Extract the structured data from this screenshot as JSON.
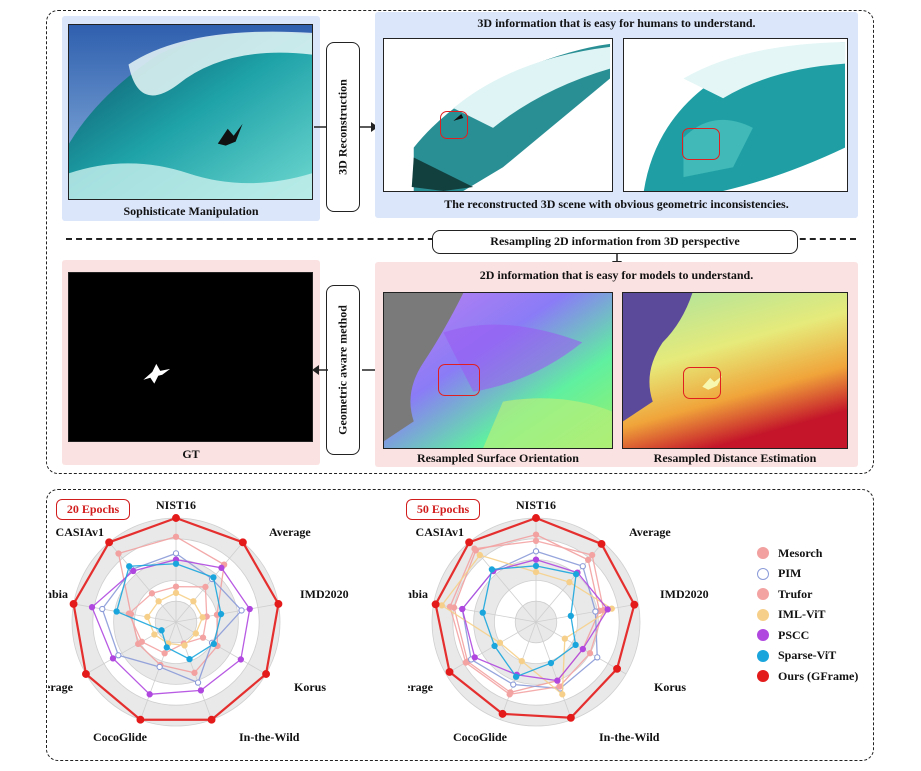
{
  "top": {
    "source_caption": "Sophisticate Manipulation",
    "recon_button": "3D Reconstruction",
    "human_title": "3D information that is easy for humans to understand.",
    "recon_caption": "The reconstructed 3D scene with obvious geometric inconsistencies.",
    "resample_button": "Resampling 2D information from 3D perspective",
    "model_title": "2D information that is easy for models to understand.",
    "geom_button": "Geometric aware method",
    "gt_caption": "GT",
    "surface_caption": "Resampled Surface Orientation",
    "distance_caption": "Resampled Distance Estimation"
  },
  "charts_labels": {
    "left_epoch": "20 Epochs",
    "right_epoch": "50 Epochs"
  },
  "legend": [
    {
      "name": "Mesorch",
      "color": "#f2a0a0",
      "hollow": false
    },
    {
      "name": "PIM",
      "color": "#8b9bd8",
      "hollow": true
    },
    {
      "name": "Trufor",
      "color": "#f4a3a3",
      "hollow": false
    },
    {
      "name": "IML-ViT",
      "color": "#f6d08a",
      "hollow": false
    },
    {
      "name": "PSCC",
      "color": "#b048e0",
      "hollow": false
    },
    {
      "name": "Sparse-ViT",
      "color": "#1aa6dd",
      "hollow": false
    },
    {
      "name": "Ours (GFrame)",
      "color": "#e41b1b",
      "hollow": false
    }
  ],
  "chart_data": [
    {
      "type": "radar",
      "title": "20 Epochs",
      "axes": [
        "NIST16",
        "Average",
        "IMD2020",
        "Korus",
        "In-the-Wild",
        "CocoGlide",
        "Coverage",
        "Columbia",
        "CASIAv1"
      ],
      "rmax": 5,
      "grid": true,
      "legend_position": "right",
      "series": [
        {
          "name": "Mesorch",
          "color": "#f2a0a0",
          "hollow": false,
          "width": 1.3,
          "values": [
            4.1,
            3.6,
            2.0,
            2.3,
            2.6,
            2.2,
            2.1,
            2.2,
            4.3
          ]
        },
        {
          "name": "PIM",
          "color": "#8b9bd8",
          "hollow": true,
          "width": 1.3,
          "values": [
            3.3,
            2.7,
            3.2,
            2.0,
            3.1,
            2.3,
            3.2,
            3.6,
            3.3
          ]
        },
        {
          "name": "Trufor",
          "color": "#f4a3a3",
          "hollow": false,
          "width": 1.3,
          "values": [
            1.7,
            2.2,
            1.5,
            1.5,
            1.1,
            1.6,
            1.9,
            2.3,
            1.8
          ]
        },
        {
          "name": "IML-ViT",
          "color": "#f6d08a",
          "hollow": false,
          "width": 1.3,
          "values": [
            1.4,
            1.3,
            1.3,
            1.1,
            1.2,
            1.1,
            1.2,
            1.4,
            1.3
          ]
        },
        {
          "name": "PSCC",
          "color": "#b048e0",
          "hollow": false,
          "width": 1.3,
          "values": [
            3.0,
            3.4,
            3.6,
            3.6,
            3.5,
            3.7,
            3.5,
            4.1,
            3.2
          ]
        },
        {
          "name": "Sparse-ViT",
          "color": "#1aa6dd",
          "hollow": false,
          "width": 1.3,
          "values": [
            2.8,
            2.8,
            2.2,
            2.1,
            1.9,
            1.3,
            0.8,
            2.9,
            3.5
          ]
        },
        {
          "name": "Ours (GFrame)",
          "color": "#e41b1b",
          "hollow": false,
          "width": 2.2,
          "values": [
            5.0,
            5.0,
            5.0,
            5.0,
            5.0,
            5.0,
            5.0,
            5.0,
            5.0
          ]
        }
      ]
    },
    {
      "type": "radar",
      "title": "50 Epochs",
      "axes": [
        "NIST16",
        "Average",
        "IMD2020",
        "Korus",
        "In-the-Wild",
        "CocoGlide",
        "Coverage",
        "Columbia",
        "CASIAv1"
      ],
      "rmax": 5,
      "grid": true,
      "legend_position": "right",
      "series": [
        {
          "name": "Mesorch",
          "color": "#f2a0a0",
          "hollow": false,
          "width": 1.3,
          "values": [
            4.2,
            3.9,
            3.1,
            2.6,
            3.0,
            3.6,
            3.8,
            4.0,
            4.5
          ]
        },
        {
          "name": "PIM",
          "color": "#8b9bd8",
          "hollow": true,
          "width": 1.3,
          "values": [
            3.4,
            3.5,
            2.9,
            3.4,
            3.4,
            3.2,
            3.6,
            3.6,
            3.2
          ]
        },
        {
          "name": "Trufor",
          "color": "#f4a3a3",
          "hollow": false,
          "width": 1.3,
          "values": [
            3.9,
            4.2,
            3.3,
            3.0,
            3.3,
            3.7,
            3.9,
            4.2,
            4.6
          ]
        },
        {
          "name": "IML-ViT",
          "color": "#f6d08a",
          "hollow": false,
          "width": 1.3,
          "values": [
            2.4,
            2.5,
            3.7,
            1.6,
            3.7,
            2.0,
            2.0,
            4.6,
            4.2
          ]
        },
        {
          "name": "PSCC",
          "color": "#b048e0",
          "hollow": false,
          "width": 1.3,
          "values": [
            3.0,
            3.1,
            3.5,
            2.6,
            3.0,
            2.7,
            3.4,
            3.6,
            3.2
          ]
        },
        {
          "name": "Sparse-ViT",
          "color": "#1aa6dd",
          "hollow": false,
          "width": 1.3,
          "values": [
            2.7,
            3.0,
            1.7,
            2.2,
            2.1,
            2.8,
            2.3,
            2.6,
            3.3
          ]
        },
        {
          "name": "Ours (GFrame)",
          "color": "#e41b1b",
          "hollow": false,
          "width": 2.2,
          "values": [
            5.0,
            4.9,
            4.8,
            4.5,
            4.9,
            4.7,
            4.8,
            4.9,
            5.0
          ]
        }
      ]
    }
  ]
}
